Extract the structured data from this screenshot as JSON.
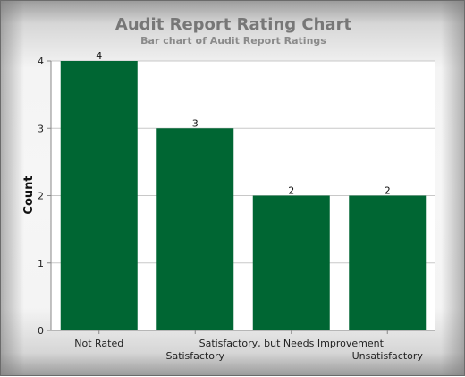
{
  "chart_data": {
    "type": "bar",
    "title": "Audit Report Rating Chart",
    "subtitle": "Bar chart of Audit Report Ratings",
    "xlabel": "",
    "ylabel": "Count",
    "categories": [
      "Not Rated",
      "Satisfactory",
      "Satisfactory, but Needs Improvement",
      "Unsatisfactory"
    ],
    "values": [
      4,
      3,
      2,
      2
    ],
    "ylim": [
      0,
      4
    ],
    "yticks": [
      0,
      1,
      2,
      3,
      4
    ],
    "grid": true,
    "legend": "none",
    "bar_color": "#006633"
  }
}
